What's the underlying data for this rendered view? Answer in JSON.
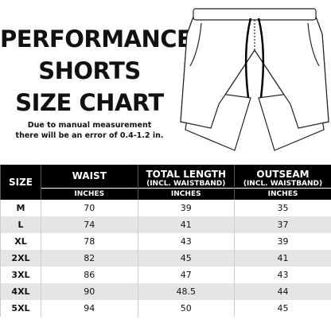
{
  "header": {
    "title": [
      "PERFORMANCE",
      "SHORTS",
      "SIZE CHART"
    ],
    "note": [
      "Due to manual measurement",
      "there will be an error of 0.4-1.2 in."
    ]
  },
  "table": {
    "size_header": "SIZE",
    "columns": [
      {
        "name": "WAIST",
        "sub": null,
        "unit": "INCHES"
      },
      {
        "name": "TOTAL LENGTH",
        "sub": "(INCL. WAISTBAND)",
        "unit": "INCHES"
      },
      {
        "name": "OUTSEAM",
        "sub": "(INCL. WAISTBAND)",
        "unit": "INCHES"
      }
    ],
    "rows": [
      [
        "M",
        70,
        39,
        35
      ],
      [
        "L",
        74,
        41,
        37
      ],
      [
        "XL",
        78,
        43,
        39
      ],
      [
        "2XL",
        82,
        45,
        41
      ],
      [
        "3XL",
        86,
        47,
        43
      ],
      [
        "4XL",
        90,
        48.5,
        44
      ],
      [
        "5XL",
        94,
        50,
        45
      ]
    ]
  }
}
